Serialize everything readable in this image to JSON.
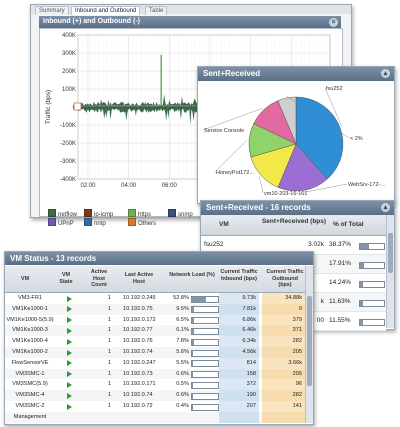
{
  "traffic_window": {
    "tabs": [
      "Summary",
      "Inbound and Outbound",
      "Table"
    ],
    "title": "Inbound (+) and Outbound (-)",
    "legend": [
      {
        "label": "netflow",
        "color": "#3f6b3f"
      },
      {
        "label": "ip-icmp",
        "color": "#7a3b1d"
      },
      {
        "label": "https",
        "color": "#6fb34f"
      },
      {
        "label": "snmp",
        "color": "#3c4e7a"
      },
      {
        "label": "UPnP",
        "color": "#6b5db6"
      },
      {
        "label": "nntp",
        "color": "#2f6fa8"
      },
      {
        "label": "Others",
        "color": "#d87a2c"
      }
    ],
    "chart_data": {
      "type": "area",
      "ylabel": "Traffic (bps)",
      "yticks": [
        "400K",
        "300K",
        "200K",
        "100K",
        "0",
        "-100K",
        "-200K",
        "-300K",
        "-400K"
      ],
      "xticks": [
        "02:00",
        "04:00",
        "06:00",
        "08:00",
        "10:00",
        "12:00"
      ],
      "ylim": [
        -400,
        400
      ],
      "grid": true
    }
  },
  "pie_window": {
    "title": "Sent+Received",
    "chart_data": {
      "type": "pie",
      "slices": [
        {
          "label": "fsu252",
          "value": 38.37,
          "color": "#2f8fd6"
        },
        {
          "label": "WebSrv-172-...",
          "value": 17.91,
          "color": "#9b6fd1"
        },
        {
          "label": "vm10-203-16-161",
          "value": 14.24,
          "color": "#f2e84a"
        },
        {
          "label": "HoneyPot172...",
          "value": 11.63,
          "color": "#8fd36a"
        },
        {
          "label": "Service Console",
          "value": 11.55,
          "color": "#e36aa0"
        },
        {
          "label": "< 2%",
          "value": 6.3,
          "color": "#cfcfcf"
        }
      ]
    }
  },
  "records_window": {
    "title": "Sent+Received - 16 records",
    "columns": [
      "VM",
      "Sent+Received (bps)",
      "% of Total"
    ],
    "rows": [
      {
        "vm": "fsu252",
        "bps": "3.02k",
        "pct": "38.37%",
        "pct_value": 38.37
      },
      {
        "vm": "",
        "bps": "",
        "pct": "17.91%",
        "pct_value": 17.91
      },
      {
        "vm": "",
        "bps": "",
        "pct": "14.24%",
        "pct_value": 14.24
      },
      {
        "vm": "",
        "bps": "k",
        "pct": "11.63%",
        "pct_value": 11.63
      },
      {
        "vm": "",
        "bps": "00",
        "pct": "11.55%",
        "pct_value": 11.55
      }
    ]
  },
  "vm_status": {
    "title": "VM Status - 13 records",
    "columns": {
      "vm": "VM",
      "state": "VM State",
      "hosts": "Active Host Count",
      "last_host": "Last Active Host",
      "load": "Network Load (%)",
      "inbound": "Current Traffic Inbound (bps)",
      "outbound": "Current Traffic Outbound (bps)"
    },
    "rows": [
      {
        "vm": "VM3-FR1",
        "hosts": "1",
        "last_host": "10.192.0.245",
        "load": "52.8%",
        "load_value": 52.8,
        "inbound": "9.73k",
        "outbound": "34.88k"
      },
      {
        "vm": "VM1Ke1000-1",
        "hosts": "1",
        "last_host": "10.192.0.75",
        "load": "9.5%",
        "load_value": 9.5,
        "inbound": "7.81k",
        "outbound": "0"
      },
      {
        "vm": "VM1Ke1000-5(5.9)",
        "hosts": "1",
        "last_host": "10.192.0.172",
        "load": "6.5%",
        "load_value": 6.5,
        "inbound": "6.86k",
        "outbound": "379"
      },
      {
        "vm": "VM1Ke1000-3",
        "hosts": "1",
        "last_host": "10.192.0.77",
        "load": "6.1%",
        "load_value": 6.1,
        "inbound": "6.46k",
        "outbound": "371"
      },
      {
        "vm": "VM1Ke1000-4",
        "hosts": "1",
        "last_host": "10.192.0.76",
        "load": "7.8%",
        "load_value": 7.8,
        "inbound": "6.34k",
        "outbound": "282"
      },
      {
        "vm": "VM1Ke1000-2",
        "hosts": "1",
        "last_host": "10.192.0.74",
        "load": "5.6%",
        "load_value": 5.6,
        "inbound": "4.56k",
        "outbound": "205"
      },
      {
        "vm": "FlowSensorVE",
        "hosts": "1",
        "last_host": "10.192.0.247",
        "load": "5.5%",
        "load_value": 5.5,
        "inbound": "814",
        "outbound": "3.66k"
      },
      {
        "vm": "VM3SMC-1",
        "hosts": "1",
        "last_host": "10.192.0.73",
        "load": "0.6%",
        "load_value": 0.6,
        "inbound": "158",
        "outbound": "205"
      },
      {
        "vm": "VM3SMC(5.9)",
        "hosts": "1",
        "last_host": "10.192.0.171",
        "load": "0.5%",
        "load_value": 0.5,
        "inbound": "372",
        "outbound": "96"
      },
      {
        "vm": "VM3SMC-4",
        "hosts": "1",
        "last_host": "10.192.0.74",
        "load": "0.6%",
        "load_value": 0.6,
        "inbound": "190",
        "outbound": "282"
      },
      {
        "vm": "VM3SMC-2",
        "hosts": "1",
        "last_host": "10.192.0.72",
        "load": "0.4%",
        "load_value": 0.4,
        "inbound": "207",
        "outbound": "141"
      },
      {
        "vm": "Management",
        "hosts": "",
        "last_host": "",
        "load": "",
        "load_value": 0,
        "inbound": "",
        "outbound": ""
      }
    ]
  }
}
